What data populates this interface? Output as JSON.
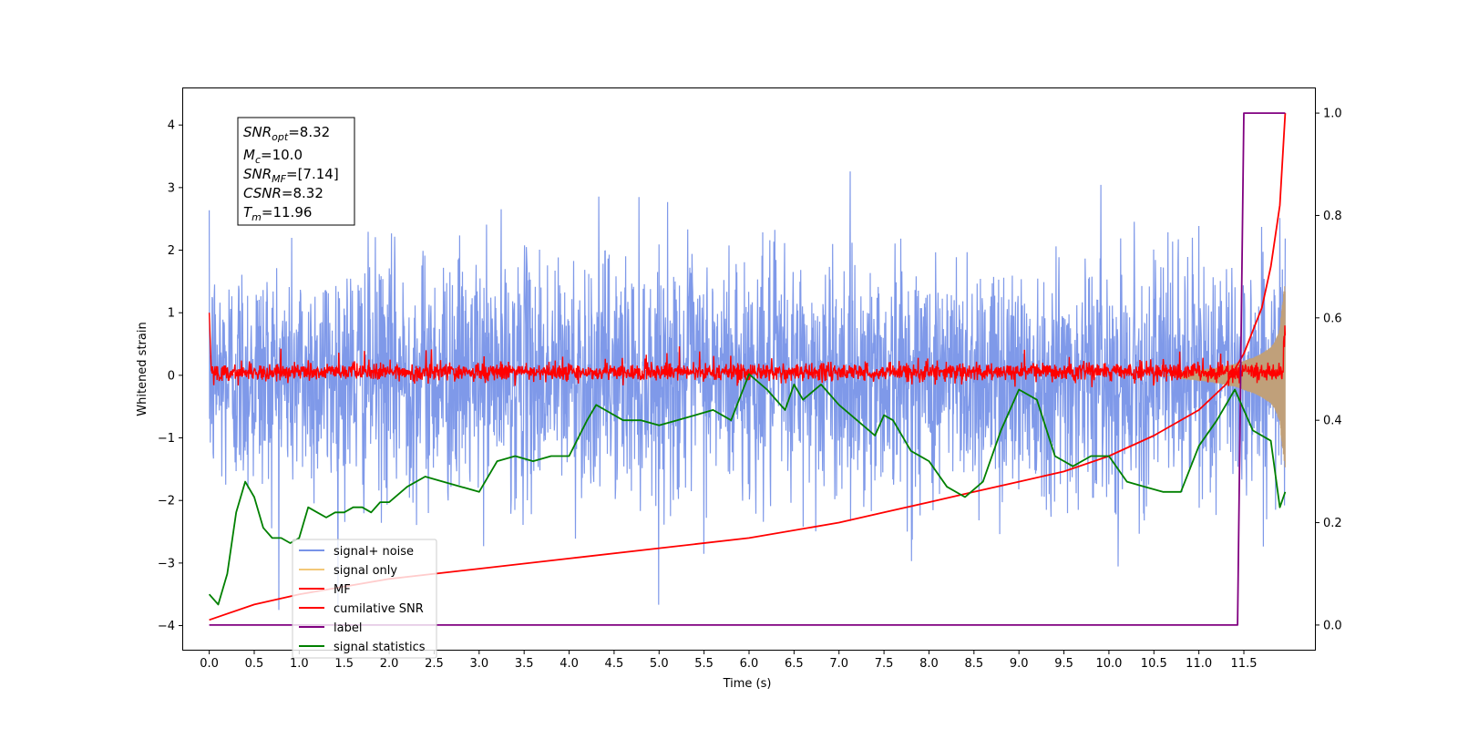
{
  "chart_data": {
    "type": "line",
    "xlabel": "Time (s)",
    "ylabel": "Whitened strain",
    "xlim": [
      -0.3,
      12.3
    ],
    "ylim": [
      -4.4,
      4.6
    ],
    "y2lim": [
      -0.05,
      1.05
    ],
    "xticks": [
      "0.0",
      "0.5",
      "1.0",
      "1.5",
      "2.0",
      "2.5",
      "3.0",
      "3.5",
      "4.0",
      "4.5",
      "5.0",
      "5.5",
      "6.0",
      "6.5",
      "7.0",
      "7.5",
      "8.0",
      "8.5",
      "9.0",
      "9.5",
      "10.0",
      "10.5",
      "11.0",
      "11.5"
    ],
    "yticks": [
      "4",
      "3",
      "2",
      "1",
      "0",
      "−1",
      "−2",
      "−3",
      "−4"
    ],
    "y2ticks": [
      "1.0",
      "0.8",
      "0.6",
      "0.4",
      "0.2",
      "0.0"
    ],
    "annotation": {
      "lines": [
        {
          "base": "SNR",
          "sub": "opt",
          "rest": "=8.32"
        },
        {
          "base": "M",
          "sub": "c",
          "rest": "=10.0"
        },
        {
          "base": "SNR",
          "sub": "MF",
          "rest": "=[7.14]"
        },
        {
          "base": "CSNR",
          "sub": "",
          "rest": "=8.32"
        },
        {
          "base": "T",
          "sub": "m",
          "rest": "=11.96"
        }
      ]
    },
    "legend": {
      "placement": "lower-left",
      "entries": [
        "signal+ noise",
        "signal only",
        "MF",
        "cumilative SNR",
        "label",
        "signal statistics"
      ]
    },
    "colors": {
      "signal_noise": "#7893e8",
      "signal_only": "#f3c878",
      "signal_only_fill": "#c0a07a",
      "mf": "#ff0000",
      "cumulative_snr": "#ff0000",
      "label": "#800080",
      "signal_statistics": "#008000"
    },
    "series": [
      {
        "name": "cumilative SNR",
        "axis": "right",
        "x": [
          0.0,
          0.5,
          1.0,
          2.0,
          3.0,
          4.0,
          5.0,
          6.0,
          7.0,
          7.5,
          8.0,
          8.5,
          9.0,
          9.5,
          10.0,
          10.5,
          11.0,
          11.3,
          11.5,
          11.7,
          11.8,
          11.9,
          11.96
        ],
        "y": [
          0.01,
          0.04,
          0.06,
          0.09,
          0.11,
          0.13,
          0.15,
          0.17,
          0.2,
          0.22,
          0.24,
          0.26,
          0.28,
          0.3,
          0.33,
          0.37,
          0.42,
          0.47,
          0.53,
          0.62,
          0.7,
          0.82,
          1.0
        ]
      },
      {
        "name": "label",
        "axis": "right",
        "x": [
          0.0,
          11.43,
          11.5,
          11.96
        ],
        "y": [
          0.0,
          0.0,
          1.0,
          1.0
        ]
      },
      {
        "name": "signal statistics",
        "axis": "right",
        "x": [
          0.0,
          0.1,
          0.2,
          0.3,
          0.4,
          0.5,
          0.6,
          0.7,
          0.8,
          0.9,
          1.0,
          1.1,
          1.2,
          1.3,
          1.4,
          1.5,
          1.6,
          1.7,
          1.8,
          1.9,
          2.0,
          2.2,
          2.4,
          2.6,
          2.8,
          3.0,
          3.2,
          3.4,
          3.6,
          3.8,
          4.0,
          4.2,
          4.3,
          4.4,
          4.6,
          4.8,
          5.0,
          5.2,
          5.4,
          5.6,
          5.8,
          6.0,
          6.2,
          6.4,
          6.5,
          6.6,
          6.8,
          7.0,
          7.2,
          7.4,
          7.5,
          7.6,
          7.8,
          8.0,
          8.2,
          8.4,
          8.6,
          8.8,
          9.0,
          9.2,
          9.4,
          9.6,
          9.8,
          10.0,
          10.2,
          10.4,
          10.6,
          10.8,
          11.0,
          11.2,
          11.4,
          11.6,
          11.8,
          11.9,
          11.96
        ],
        "y": [
          0.06,
          0.04,
          0.1,
          0.22,
          0.28,
          0.25,
          0.19,
          0.17,
          0.17,
          0.16,
          0.17,
          0.23,
          0.22,
          0.21,
          0.22,
          0.22,
          0.23,
          0.23,
          0.22,
          0.24,
          0.24,
          0.27,
          0.29,
          0.28,
          0.27,
          0.26,
          0.32,
          0.33,
          0.32,
          0.33,
          0.33,
          0.4,
          0.43,
          0.42,
          0.4,
          0.4,
          0.39,
          0.4,
          0.41,
          0.42,
          0.4,
          0.49,
          0.46,
          0.42,
          0.47,
          0.44,
          0.47,
          0.43,
          0.4,
          0.37,
          0.41,
          0.4,
          0.34,
          0.32,
          0.27,
          0.25,
          0.28,
          0.38,
          0.46,
          0.44,
          0.33,
          0.31,
          0.33,
          0.33,
          0.28,
          0.27,
          0.26,
          0.26,
          0.35,
          0.4,
          0.46,
          0.38,
          0.36,
          0.23,
          0.26
        ]
      },
      {
        "name": "signal only",
        "axis": "left",
        "envelope_x": [
          10.8,
          11.0,
          11.2,
          11.4,
          11.6,
          11.7,
          11.8,
          11.85,
          11.9,
          11.93,
          11.96
        ],
        "envelope_y": [
          0.05,
          0.08,
          0.12,
          0.18,
          0.28,
          0.35,
          0.45,
          0.55,
          0.75,
          1.2,
          1.5
        ]
      },
      {
        "name": "signal+ noise",
        "axis": "left",
        "description_values": {
          "sigma": 0.95,
          "max": 4.15,
          "min": -3.75
        }
      },
      {
        "name": "MF",
        "axis": "left",
        "description_values": {
          "start": 1.0,
          "sigma": 0.07,
          "end": 0.9
        }
      }
    ]
  }
}
